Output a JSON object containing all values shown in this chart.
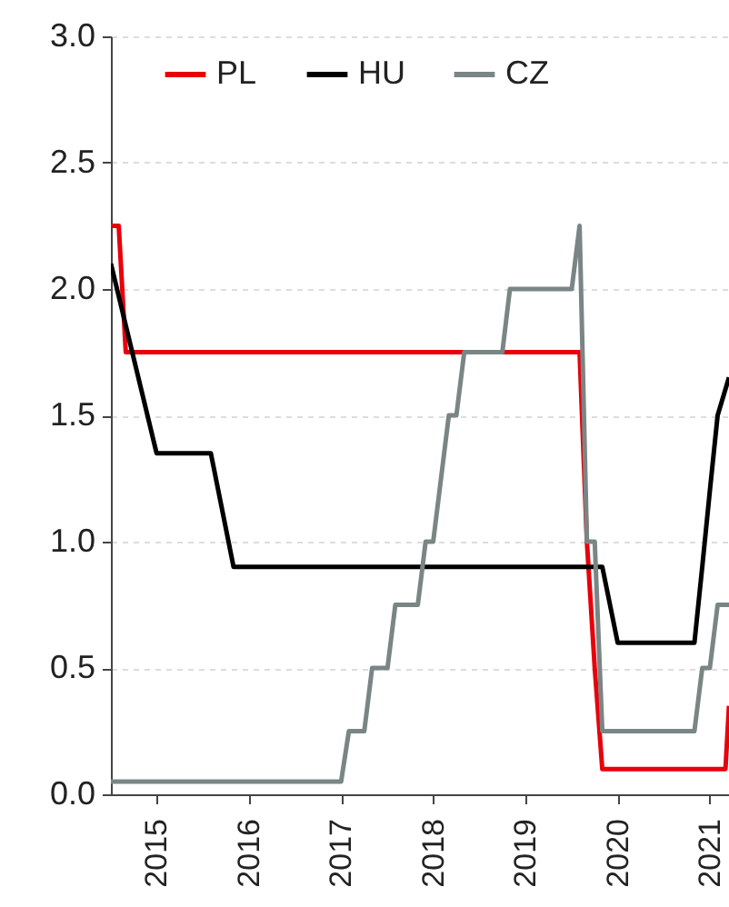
{
  "chart_data": {
    "type": "line",
    "xlim": [
      "2015-01-01",
      "2021-09-15"
    ],
    "ylim": [
      0,
      3
    ],
    "yticks": [
      {
        "value": 0,
        "label": "0.0"
      },
      {
        "value": 0.5,
        "label": "0.5"
      },
      {
        "value": 1,
        "label": "1.0"
      },
      {
        "value": 1.5,
        "label": "1.5"
      },
      {
        "value": 2,
        "label": "2.0"
      },
      {
        "value": 2.5,
        "label": "2.5"
      },
      {
        "value": 3,
        "label": "3.0"
      }
    ],
    "xticks": [
      {
        "value": "2015-07",
        "label": "2015"
      },
      {
        "value": "2016-07",
        "label": "2016"
      },
      {
        "value": "2017-07",
        "label": "2017"
      },
      {
        "value": "2018-07",
        "label": "2018"
      },
      {
        "value": "2019-07",
        "label": "2019"
      },
      {
        "value": "2020-07",
        "label": "2020"
      },
      {
        "value": "2021-07",
        "label": "2021"
      }
    ],
    "grid": "y",
    "legend": "top",
    "series": [
      {
        "name": "PL",
        "color": "#e8000b",
        "x": [
          "2015-01",
          "2015-02",
          "2015-03",
          "2020-02",
          "2020-03",
          "2020-04",
          "2020-05",
          "2021-09",
          "2021-09-15"
        ],
        "values": [
          2.25,
          2.25,
          1.75,
          1.75,
          1,
          0.5,
          0.1,
          0.1,
          0.35
        ]
      },
      {
        "name": "HU",
        "color": "#000000",
        "x": [
          "2015-01",
          "2015-07",
          "2016-02",
          "2016-05",
          "2020-05",
          "2020-07",
          "2021-05",
          "2021-06",
          "2021-07",
          "2021-08",
          "2021-09-15"
        ],
        "values": [
          2.1,
          1.35,
          1.35,
          0.9,
          0.9,
          0.6,
          0.6,
          0.9,
          1.2,
          1.5,
          1.65
        ]
      },
      {
        "name": "CZ",
        "color": "#7a8585",
        "x": [
          "2015-01",
          "2017-07",
          "2017-08",
          "2017-10",
          "2017-11",
          "2018-01",
          "2018-02",
          "2018-05",
          "2018-06",
          "2018-07",
          "2018-08",
          "2018-09",
          "2018-10",
          "2018-11",
          "2019-04",
          "2019-05",
          "2020-01",
          "2020-02",
          "2020-03",
          "2020-04",
          "2020-05",
          "2021-05",
          "2021-06",
          "2021-07",
          "2021-08",
          "2021-09-15"
        ],
        "values": [
          0.05,
          0.05,
          0.25,
          0.25,
          0.5,
          0.5,
          0.75,
          0.75,
          1,
          1,
          1.25,
          1.5,
          1.5,
          1.75,
          1.75,
          2,
          2,
          2.25,
          1,
          1,
          0.25,
          0.25,
          0.5,
          0.5,
          0.75,
          0.75
        ]
      }
    ]
  }
}
